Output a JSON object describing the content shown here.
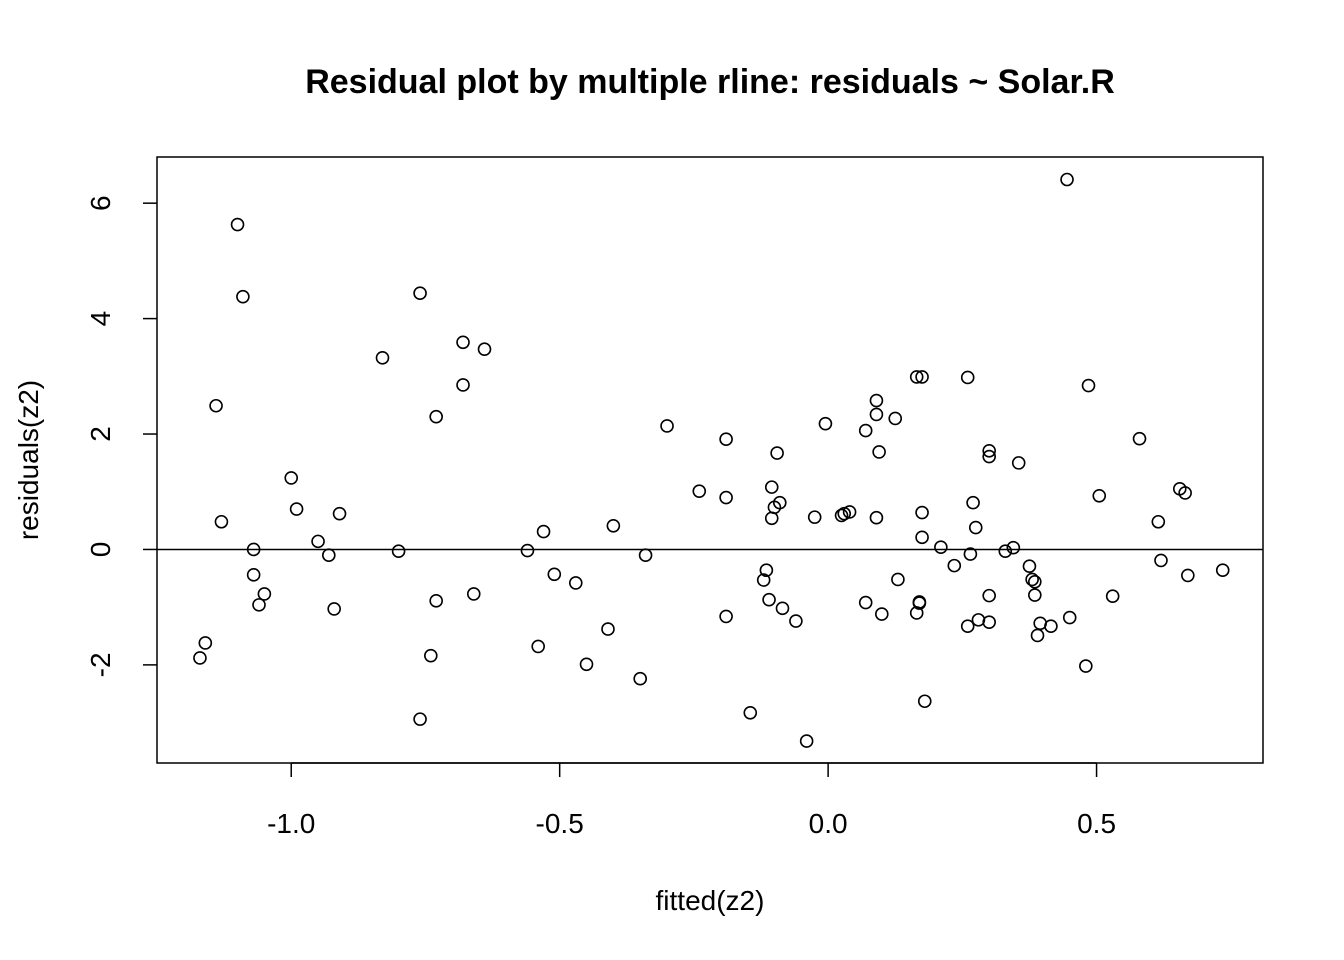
{
  "chart_data": {
    "type": "scatter",
    "title": "Residual plot by multiple rline: residuals ~ Solar.R",
    "xlabel": "fitted(z2)",
    "ylabel": "residuals(z2)",
    "xlim": [
      -1.25,
      0.81
    ],
    "ylim": [
      -3.7,
      6.8
    ],
    "x_ticks": [
      -1.0,
      -0.5,
      0.0,
      0.5
    ],
    "x_tick_labels": [
      "-1.0",
      "-0.5",
      "0.0",
      "0.5"
    ],
    "y_ticks": [
      -2,
      0,
      2,
      4,
      6
    ],
    "y_tick_labels": [
      "-2",
      "0",
      "2",
      "4",
      "6"
    ],
    "reference_line_y": 0,
    "grid": false,
    "legend": "none",
    "points": [
      {
        "x": -1.17,
        "y": -1.88
      },
      {
        "x": -1.16,
        "y": -1.62
      },
      {
        "x": -1.14,
        "y": 2.49
      },
      {
        "x": -1.13,
        "y": 0.48
      },
      {
        "x": -1.1,
        "y": 5.63
      },
      {
        "x": -1.09,
        "y": 4.38
      },
      {
        "x": -1.07,
        "y": 0.0
      },
      {
        "x": -1.07,
        "y": -0.44
      },
      {
        "x": -1.06,
        "y": -0.96
      },
      {
        "x": -1.05,
        "y": -0.77
      },
      {
        "x": -1.0,
        "y": 1.24
      },
      {
        "x": -0.99,
        "y": 0.7
      },
      {
        "x": -0.95,
        "y": 0.14
      },
      {
        "x": -0.93,
        "y": -0.1
      },
      {
        "x": -0.92,
        "y": -1.03
      },
      {
        "x": -0.91,
        "y": 0.62
      },
      {
        "x": -0.83,
        "y": 3.32
      },
      {
        "x": -0.8,
        "y": -0.03
      },
      {
        "x": -0.76,
        "y": -2.94
      },
      {
        "x": -0.76,
        "y": 4.44
      },
      {
        "x": -0.74,
        "y": -1.84
      },
      {
        "x": -0.73,
        "y": 2.3
      },
      {
        "x": -0.73,
        "y": -0.89
      },
      {
        "x": -0.68,
        "y": 3.59
      },
      {
        "x": -0.68,
        "y": 2.85
      },
      {
        "x": -0.66,
        "y": -0.77
      },
      {
        "x": -0.64,
        "y": 3.47
      },
      {
        "x": -0.56,
        "y": -0.02
      },
      {
        "x": -0.54,
        "y": -1.68
      },
      {
        "x": -0.53,
        "y": 0.31
      },
      {
        "x": -0.51,
        "y": -0.43
      },
      {
        "x": -0.47,
        "y": -0.58
      },
      {
        "x": -0.45,
        "y": -1.99
      },
      {
        "x": -0.41,
        "y": -1.38
      },
      {
        "x": -0.4,
        "y": 0.41
      },
      {
        "x": -0.35,
        "y": -2.24
      },
      {
        "x": -0.34,
        "y": -0.1
      },
      {
        "x": -0.3,
        "y": 2.14
      },
      {
        "x": -0.24,
        "y": 1.01
      },
      {
        "x": -0.19,
        "y": 1.91
      },
      {
        "x": -0.19,
        "y": 0.9
      },
      {
        "x": -0.19,
        "y": -1.16
      },
      {
        "x": -0.145,
        "y": -2.83
      },
      {
        "x": -0.12,
        "y": -0.53
      },
      {
        "x": -0.115,
        "y": -0.36
      },
      {
        "x": -0.11,
        "y": -0.87
      },
      {
        "x": -0.105,
        "y": 1.08
      },
      {
        "x": -0.105,
        "y": 0.54
      },
      {
        "x": -0.1,
        "y": 0.73
      },
      {
        "x": -0.095,
        "y": 1.67
      },
      {
        "x": -0.09,
        "y": 0.81
      },
      {
        "x": -0.085,
        "y": -1.02
      },
      {
        "x": -0.06,
        "y": -1.24
      },
      {
        "x": -0.04,
        "y": -3.32
      },
      {
        "x": -0.025,
        "y": 0.56
      },
      {
        "x": -0.005,
        "y": 2.18
      },
      {
        "x": 0.025,
        "y": 0.59
      },
      {
        "x": 0.03,
        "y": 0.62
      },
      {
        "x": 0.04,
        "y": 0.65
      },
      {
        "x": 0.07,
        "y": 2.06
      },
      {
        "x": 0.07,
        "y": -0.92
      },
      {
        "x": 0.09,
        "y": 2.58
      },
      {
        "x": 0.09,
        "y": 2.34
      },
      {
        "x": 0.09,
        "y": 0.55
      },
      {
        "x": 0.095,
        "y": 1.69
      },
      {
        "x": 0.1,
        "y": -1.12
      },
      {
        "x": 0.125,
        "y": 2.27
      },
      {
        "x": 0.13,
        "y": -0.52
      },
      {
        "x": 0.165,
        "y": 2.99
      },
      {
        "x": 0.165,
        "y": -1.1
      },
      {
        "x": 0.17,
        "y": -0.91
      },
      {
        "x": 0.17,
        "y": -0.93
      },
      {
        "x": 0.175,
        "y": 0.64
      },
      {
        "x": 0.175,
        "y": 0.21
      },
      {
        "x": 0.175,
        "y": 2.99
      },
      {
        "x": 0.18,
        "y": -2.63
      },
      {
        "x": 0.21,
        "y": 0.04
      },
      {
        "x": 0.235,
        "y": -0.28
      },
      {
        "x": 0.26,
        "y": 2.98
      },
      {
        "x": 0.26,
        "y": -1.33
      },
      {
        "x": 0.265,
        "y": -0.08
      },
      {
        "x": 0.27,
        "y": 0.81
      },
      {
        "x": 0.275,
        "y": 0.38
      },
      {
        "x": 0.28,
        "y": -1.22
      },
      {
        "x": 0.3,
        "y": 1.71
      },
      {
        "x": 0.3,
        "y": 1.61
      },
      {
        "x": 0.3,
        "y": -0.8
      },
      {
        "x": 0.3,
        "y": -1.26
      },
      {
        "x": 0.33,
        "y": -0.03
      },
      {
        "x": 0.345,
        "y": 0.03
      },
      {
        "x": 0.355,
        "y": 1.5
      },
      {
        "x": 0.375,
        "y": -0.29
      },
      {
        "x": 0.38,
        "y": -0.52
      },
      {
        "x": 0.385,
        "y": -0.56
      },
      {
        "x": 0.385,
        "y": -0.79
      },
      {
        "x": 0.39,
        "y": -1.49
      },
      {
        "x": 0.395,
        "y": -1.28
      },
      {
        "x": 0.415,
        "y": -1.33
      },
      {
        "x": 0.445,
        "y": 6.41
      },
      {
        "x": 0.45,
        "y": -1.18
      },
      {
        "x": 0.48,
        "y": -2.02
      },
      {
        "x": 0.485,
        "y": 2.84
      },
      {
        "x": 0.505,
        "y": 0.93
      },
      {
        "x": 0.53,
        "y": -0.81
      },
      {
        "x": 0.58,
        "y": 1.92
      },
      {
        "x": 0.615,
        "y": 0.48
      },
      {
        "x": 0.62,
        "y": -0.19
      },
      {
        "x": 0.655,
        "y": 1.05
      },
      {
        "x": 0.665,
        "y": 0.98
      },
      {
        "x": 0.67,
        "y": -0.45
      },
      {
        "x": 0.735,
        "y": -0.36
      }
    ]
  }
}
